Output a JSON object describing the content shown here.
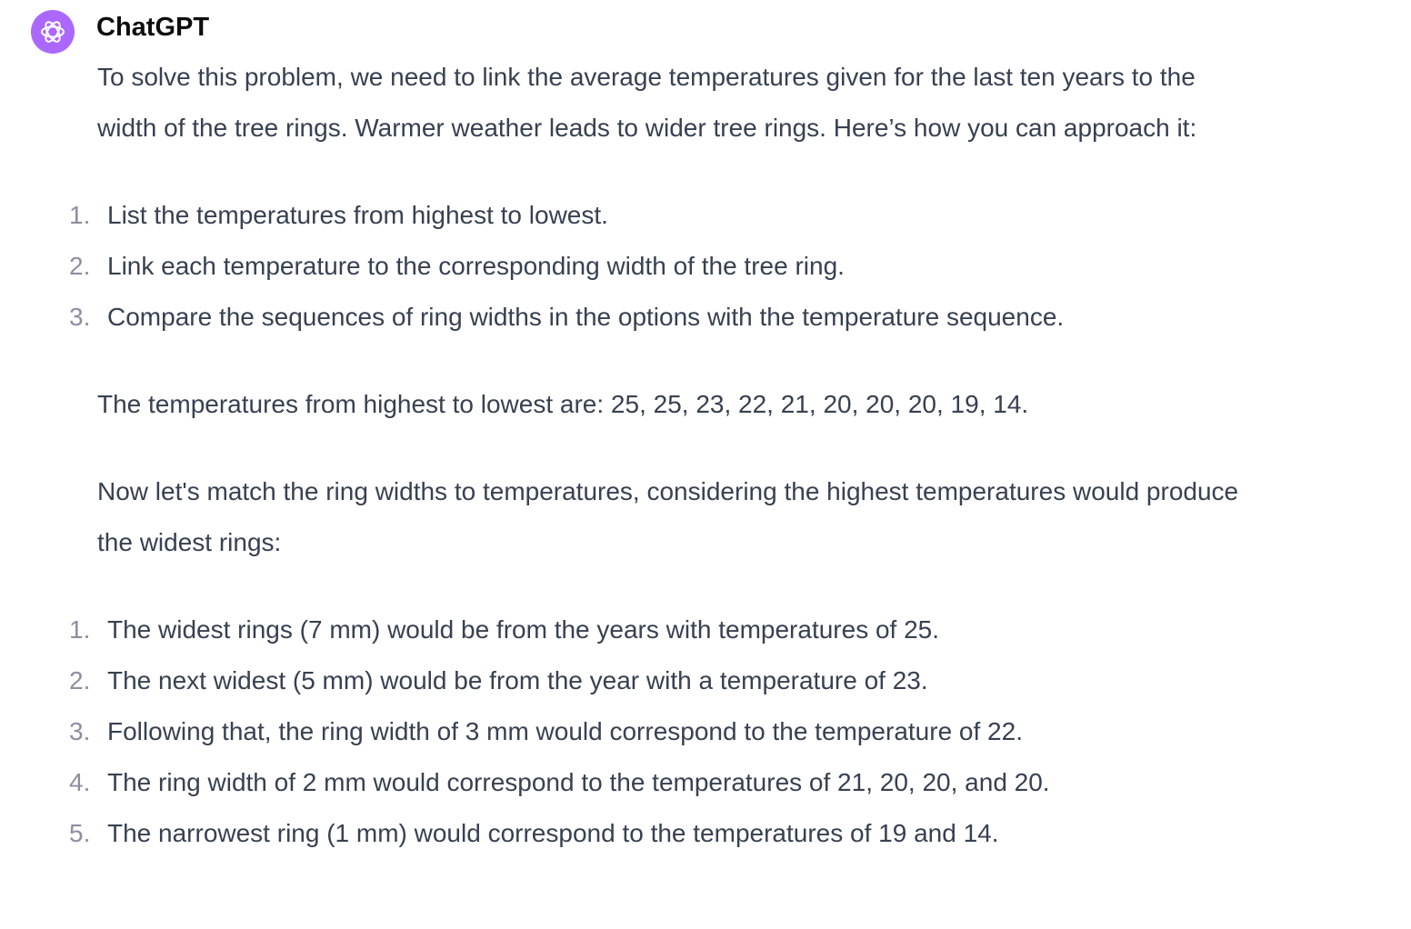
{
  "author": "ChatGPT",
  "avatar_color": "#AB68FF",
  "avatar_icon": "openai-logo-icon",
  "intro": "To solve this problem, we need to link the average temperatures given for the last ten years to the width of the tree rings. Warmer weather leads to wider tree rings. Here’s how you can approach it:",
  "steps": [
    "List the temperatures from highest to lowest.",
    "Link each temperature to the corresponding width of the tree ring.",
    "Compare the sequences of ring widths in the options with the temperature sequence."
  ],
  "sorted": "The temperatures from highest to lowest are: 25, 25, 23, 22, 21, 20, 20, 20, 19, 14.",
  "match_intro": "Now let's match the ring widths to temperatures, considering the highest temperatures would produce the widest rings:",
  "matches": [
    "The widest rings (7 mm) would be from the years with temperatures of 25.",
    "The next widest (5 mm) would be from the year with a temperature of 23.",
    "Following that, the ring width of 3 mm would correspond to the temperature of 22.",
    "The ring width of 2 mm would correspond to the temperatures of 21, 20, 20, and 20.",
    "The narrowest ring (1 mm) would correspond to the temperatures of 19 and 14."
  ],
  "numbers": [
    "1.",
    "2.",
    "3.",
    "4.",
    "5."
  ]
}
